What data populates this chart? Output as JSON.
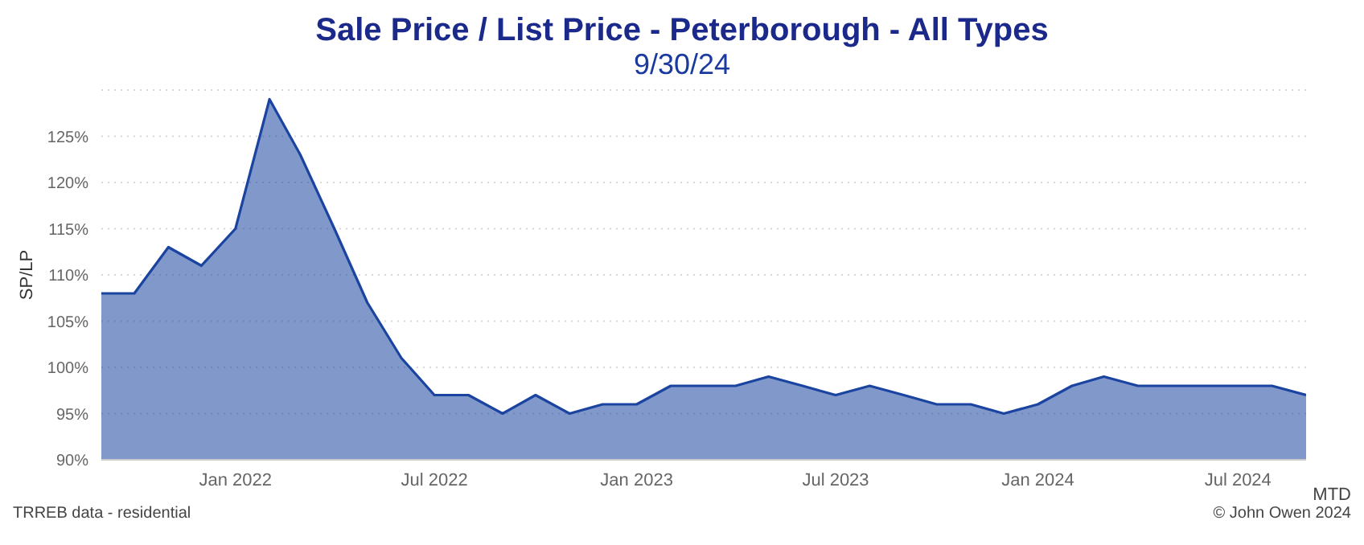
{
  "chart_data": {
    "type": "area",
    "title": "Sale Price / List Price - Peterborough - All Types",
    "subtitle": "9/30/24",
    "ylabel": "SP/LP",
    "x": [
      "2021-09",
      "2021-10",
      "2021-11",
      "2021-12",
      "2022-01",
      "2022-02",
      "2022-03",
      "2022-04",
      "2022-05",
      "2022-06",
      "2022-07",
      "2022-08",
      "2022-09",
      "2022-10",
      "2022-11",
      "2022-12",
      "2023-01",
      "2023-02",
      "2023-03",
      "2023-04",
      "2023-05",
      "2023-06",
      "2023-07",
      "2023-08",
      "2023-09",
      "2023-10",
      "2023-11",
      "2023-12",
      "2024-01",
      "2024-02",
      "2024-03",
      "2024-04",
      "2024-05",
      "2024-06",
      "2024-07",
      "2024-08",
      "2024-09"
    ],
    "series": [
      {
        "color": "#1a44a0",
        "values": [
          108,
          108,
          113,
          111,
          115,
          129,
          123,
          115,
          107,
          101,
          97,
          97,
          95,
          97,
          95,
          96,
          96,
          98,
          98,
          98,
          99,
          98,
          97,
          98,
          97,
          96,
          96,
          95,
          96,
          98,
          99,
          98,
          98,
          98,
          98,
          98,
          97
        ]
      }
    ],
    "xlim": [
      "2021-09",
      "2024-09"
    ],
    "xticks": [
      {
        "value": "2022-01",
        "label": "Jan 2022"
      },
      {
        "value": "2022-07",
        "label": "Jul 2022"
      },
      {
        "value": "2023-01",
        "label": "Jan 2023"
      },
      {
        "value": "2023-07",
        "label": "Jul 2023"
      },
      {
        "value": "2024-01",
        "label": "Jan 2024"
      },
      {
        "value": "2024-07",
        "label": "Jul 2024"
      }
    ],
    "ylim": [
      90,
      130
    ],
    "yticks": [
      {
        "value": 90,
        "label": "90%"
      },
      {
        "value": 95,
        "label": "95%"
      },
      {
        "value": 100,
        "label": "100%"
      },
      {
        "value": 105,
        "label": "105%"
      },
      {
        "value": 110,
        "label": "110%"
      },
      {
        "value": 115,
        "label": "115%"
      },
      {
        "value": 120,
        "label": "120%"
      },
      {
        "value": 125,
        "label": "125%"
      }
    ],
    "grid": "y",
    "legend": false,
    "annotations": [
      "TRREB data - residential",
      "MTD",
      "© John Owen 2024"
    ]
  }
}
